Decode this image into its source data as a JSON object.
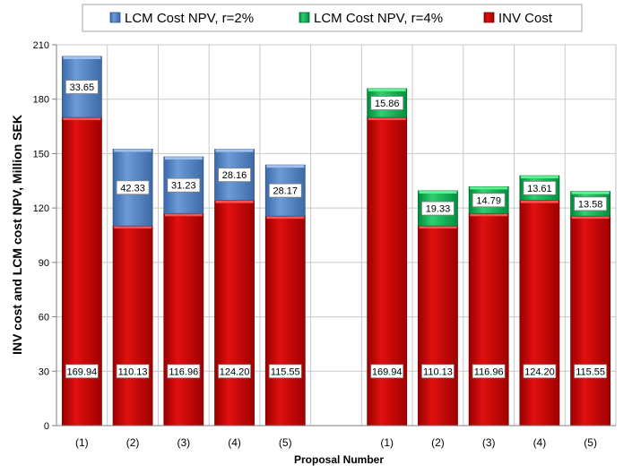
{
  "chart_data": {
    "type": "bar",
    "stacked": true,
    "xlabel": "Proposal Number",
    "ylabel": "INV cost and LCM cost NPV, Million SEK",
    "ylim": [
      0,
      210
    ],
    "yticks": [
      "0",
      "30",
      "60",
      "90",
      "120",
      "150",
      "180",
      "210"
    ],
    "grid": true,
    "legend_position": "top",
    "legend": [
      "LCM Cost NPV, r=2%",
      "LCM Cost NPV, r=4%",
      "INV Cost"
    ],
    "colors": {
      "inv": "#c00000",
      "r2": "#4f81bd",
      "r4": "#00b050"
    },
    "groups": [
      {
        "categories": [
          "(1)",
          "(2)",
          "(3)",
          "(4)",
          "(5)"
        ],
        "series": [
          {
            "name": "INV Cost",
            "values": [
              169.94,
              110.13,
              116.96,
              124.2,
              115.55
            ],
            "labels": [
              "169.94",
              "110.13",
              "116.96",
              "124.20",
              "115.55"
            ]
          },
          {
            "name": "LCM Cost NPV, r=2%",
            "values": [
              33.65,
              42.33,
              31.23,
              28.16,
              28.17
            ],
            "labels": [
              "33.65",
              "42.33",
              "31.23",
              "28.16",
              "28.17"
            ]
          }
        ]
      },
      {
        "categories": [
          "(1)",
          "(2)",
          "(3)",
          "(4)",
          "(5)"
        ],
        "series": [
          {
            "name": "INV Cost",
            "values": [
              169.94,
              110.13,
              116.96,
              124.2,
              115.55
            ],
            "labels": [
              "169.94",
              "110.13",
              "116.96",
              "124.20",
              "115.55"
            ]
          },
          {
            "name": "LCM Cost NPV, r=4%",
            "values": [
              15.86,
              19.33,
              14.79,
              13.61,
              13.58
            ],
            "labels": [
              "15.86",
              "19.33",
              "14.79",
              "13.61",
              "13.58"
            ]
          }
        ]
      }
    ]
  }
}
